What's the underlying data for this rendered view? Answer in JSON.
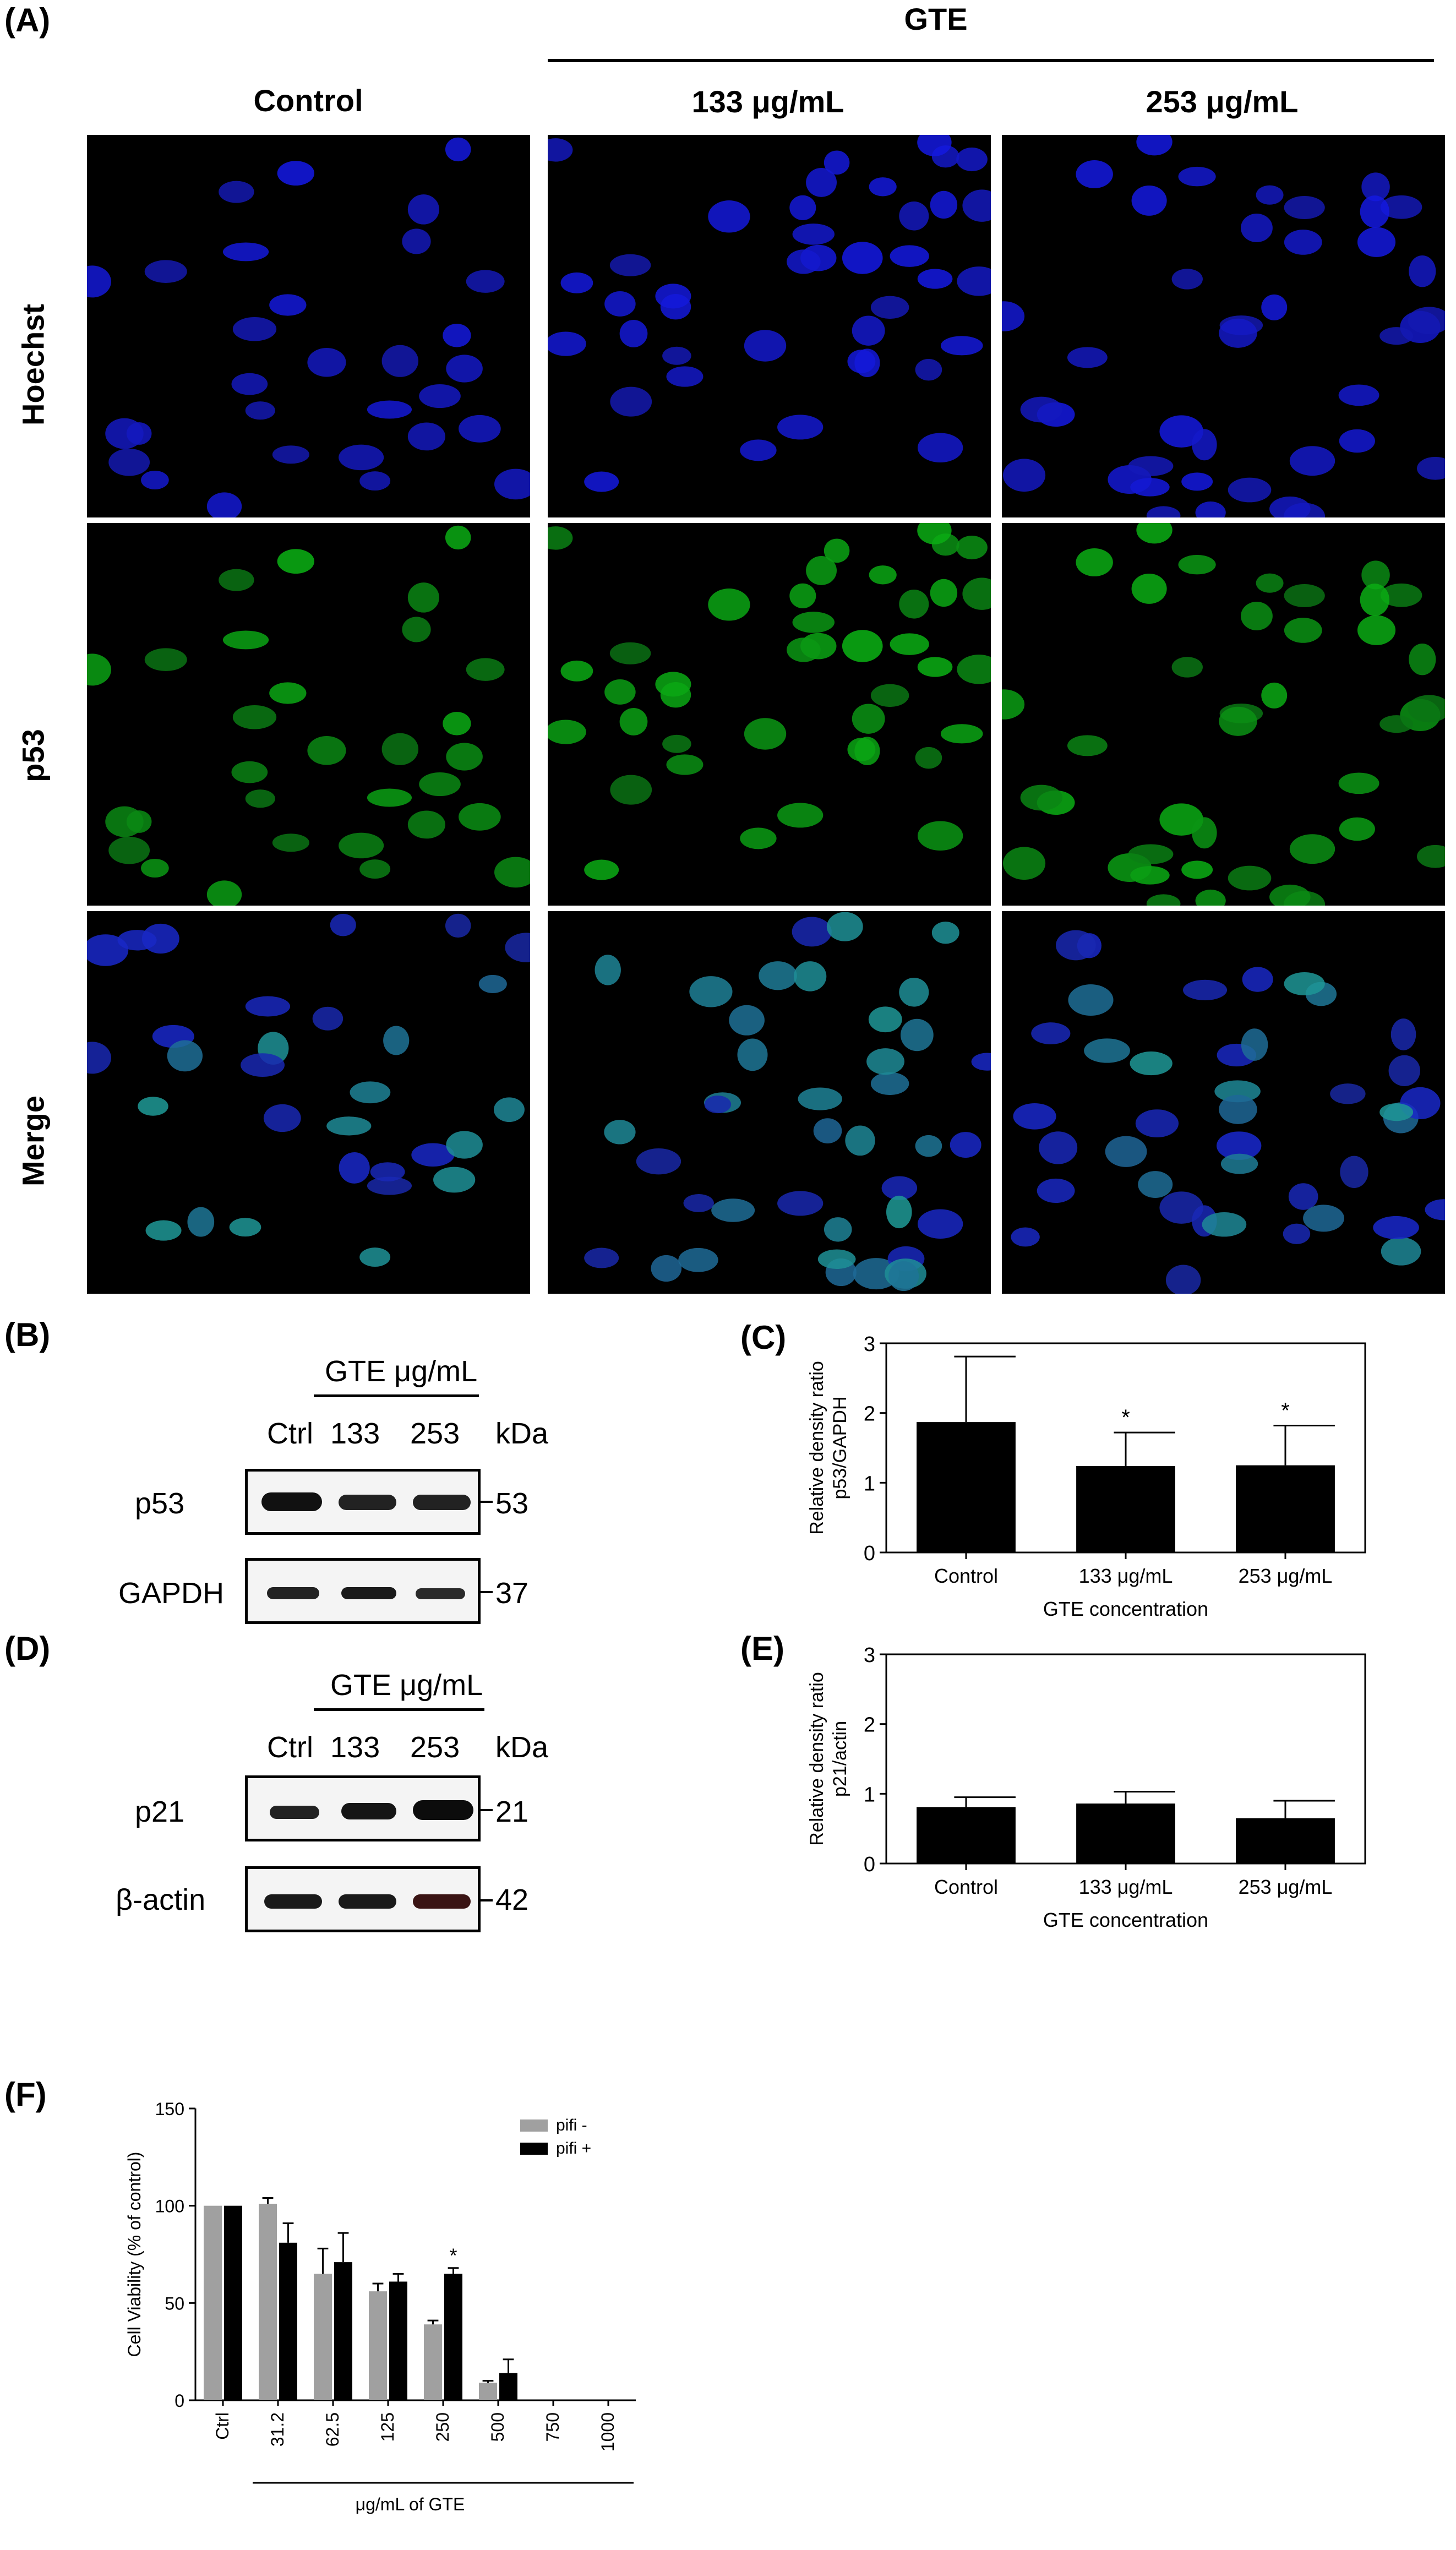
{
  "panel_A": {
    "letter": "(A)",
    "group_label": "GTE",
    "columns": [
      "Control",
      "133 μg/mL",
      "253 μg/mL"
    ],
    "rows": [
      "Hoechst",
      "p53",
      "Merge"
    ]
  },
  "panel_B": {
    "letter": "(B)",
    "header": "GTE μg/mL",
    "lanes": [
      "Ctrl",
      "133",
      "253"
    ],
    "kda_label": "kDa",
    "blots": [
      {
        "label": "p53",
        "kda": "53"
      },
      {
        "label": "GAPDH",
        "kda": "37"
      }
    ]
  },
  "panel_D": {
    "letter": "(D)",
    "header": "GTE μg/mL",
    "lanes": [
      "Ctrl",
      "133",
      "253"
    ],
    "kda_label": "kDa",
    "blots": [
      {
        "label": "p21",
        "kda": "21"
      },
      {
        "label": "β-actin",
        "kda": "42"
      }
    ]
  },
  "chart_data": [
    {
      "panel": "(C)",
      "type": "bar",
      "categories": [
        "Control",
        "133 μg/mL",
        "253 μg/mL"
      ],
      "values": [
        1.87,
        1.24,
        1.25
      ],
      "errors": [
        0.94,
        0.48,
        0.57
      ],
      "significance": [
        "",
        "*",
        "*"
      ],
      "xlabel": "GTE concentration",
      "ylabel": [
        "Relative density ratio",
        "p53/GAPDH"
      ],
      "ylim": [
        0,
        3
      ],
      "yticks": [
        "0",
        "1",
        "2",
        "3"
      ]
    },
    {
      "panel": "(E)",
      "type": "bar",
      "categories": [
        "Control",
        "133 μg/mL",
        "253 μg/mL"
      ],
      "values": [
        0.81,
        0.86,
        0.65
      ],
      "errors": [
        0.14,
        0.17,
        0.25
      ],
      "significance": [
        "",
        "",
        ""
      ],
      "xlabel": "GTE concentration",
      "ylabel": [
        "Relative density ratio",
        "p21/actin"
      ],
      "ylim": [
        0,
        3
      ],
      "yticks": [
        "0",
        "1",
        "2",
        "3"
      ]
    },
    {
      "panel": "(F)",
      "type": "bar",
      "categories": [
        "Ctrl",
        "31.2",
        "62.5",
        "125",
        "250",
        "500",
        "750",
        "1000"
      ],
      "series": [
        {
          "name": "pifi -",
          "color": "#a0a0a0",
          "values": [
            100,
            101,
            65,
            56,
            39,
            9,
            0,
            0
          ],
          "errors": [
            0,
            3,
            13,
            4,
            2,
            1,
            0,
            0
          ]
        },
        {
          "name": "pifi +",
          "color": "#000000",
          "values": [
            100,
            81,
            71,
            61,
            65,
            14,
            0,
            0
          ],
          "errors": [
            0,
            10,
            15,
            4,
            3,
            7,
            0,
            0
          ]
        }
      ],
      "significance": [
        "",
        "",
        "",
        "",
        "*",
        "",
        "",
        ""
      ],
      "xlabel": "μg/mL of  GTE",
      "ylabel": "Cell Viability  (% of control)",
      "ylim": [
        0,
        150
      ],
      "yticks": [
        "0",
        "50",
        "100",
        "150"
      ],
      "legend_position": "top-right"
    }
  ],
  "panel_C_letter": "(C)",
  "panel_E_letter": "(E)",
  "panel_F_letter": "(F)"
}
